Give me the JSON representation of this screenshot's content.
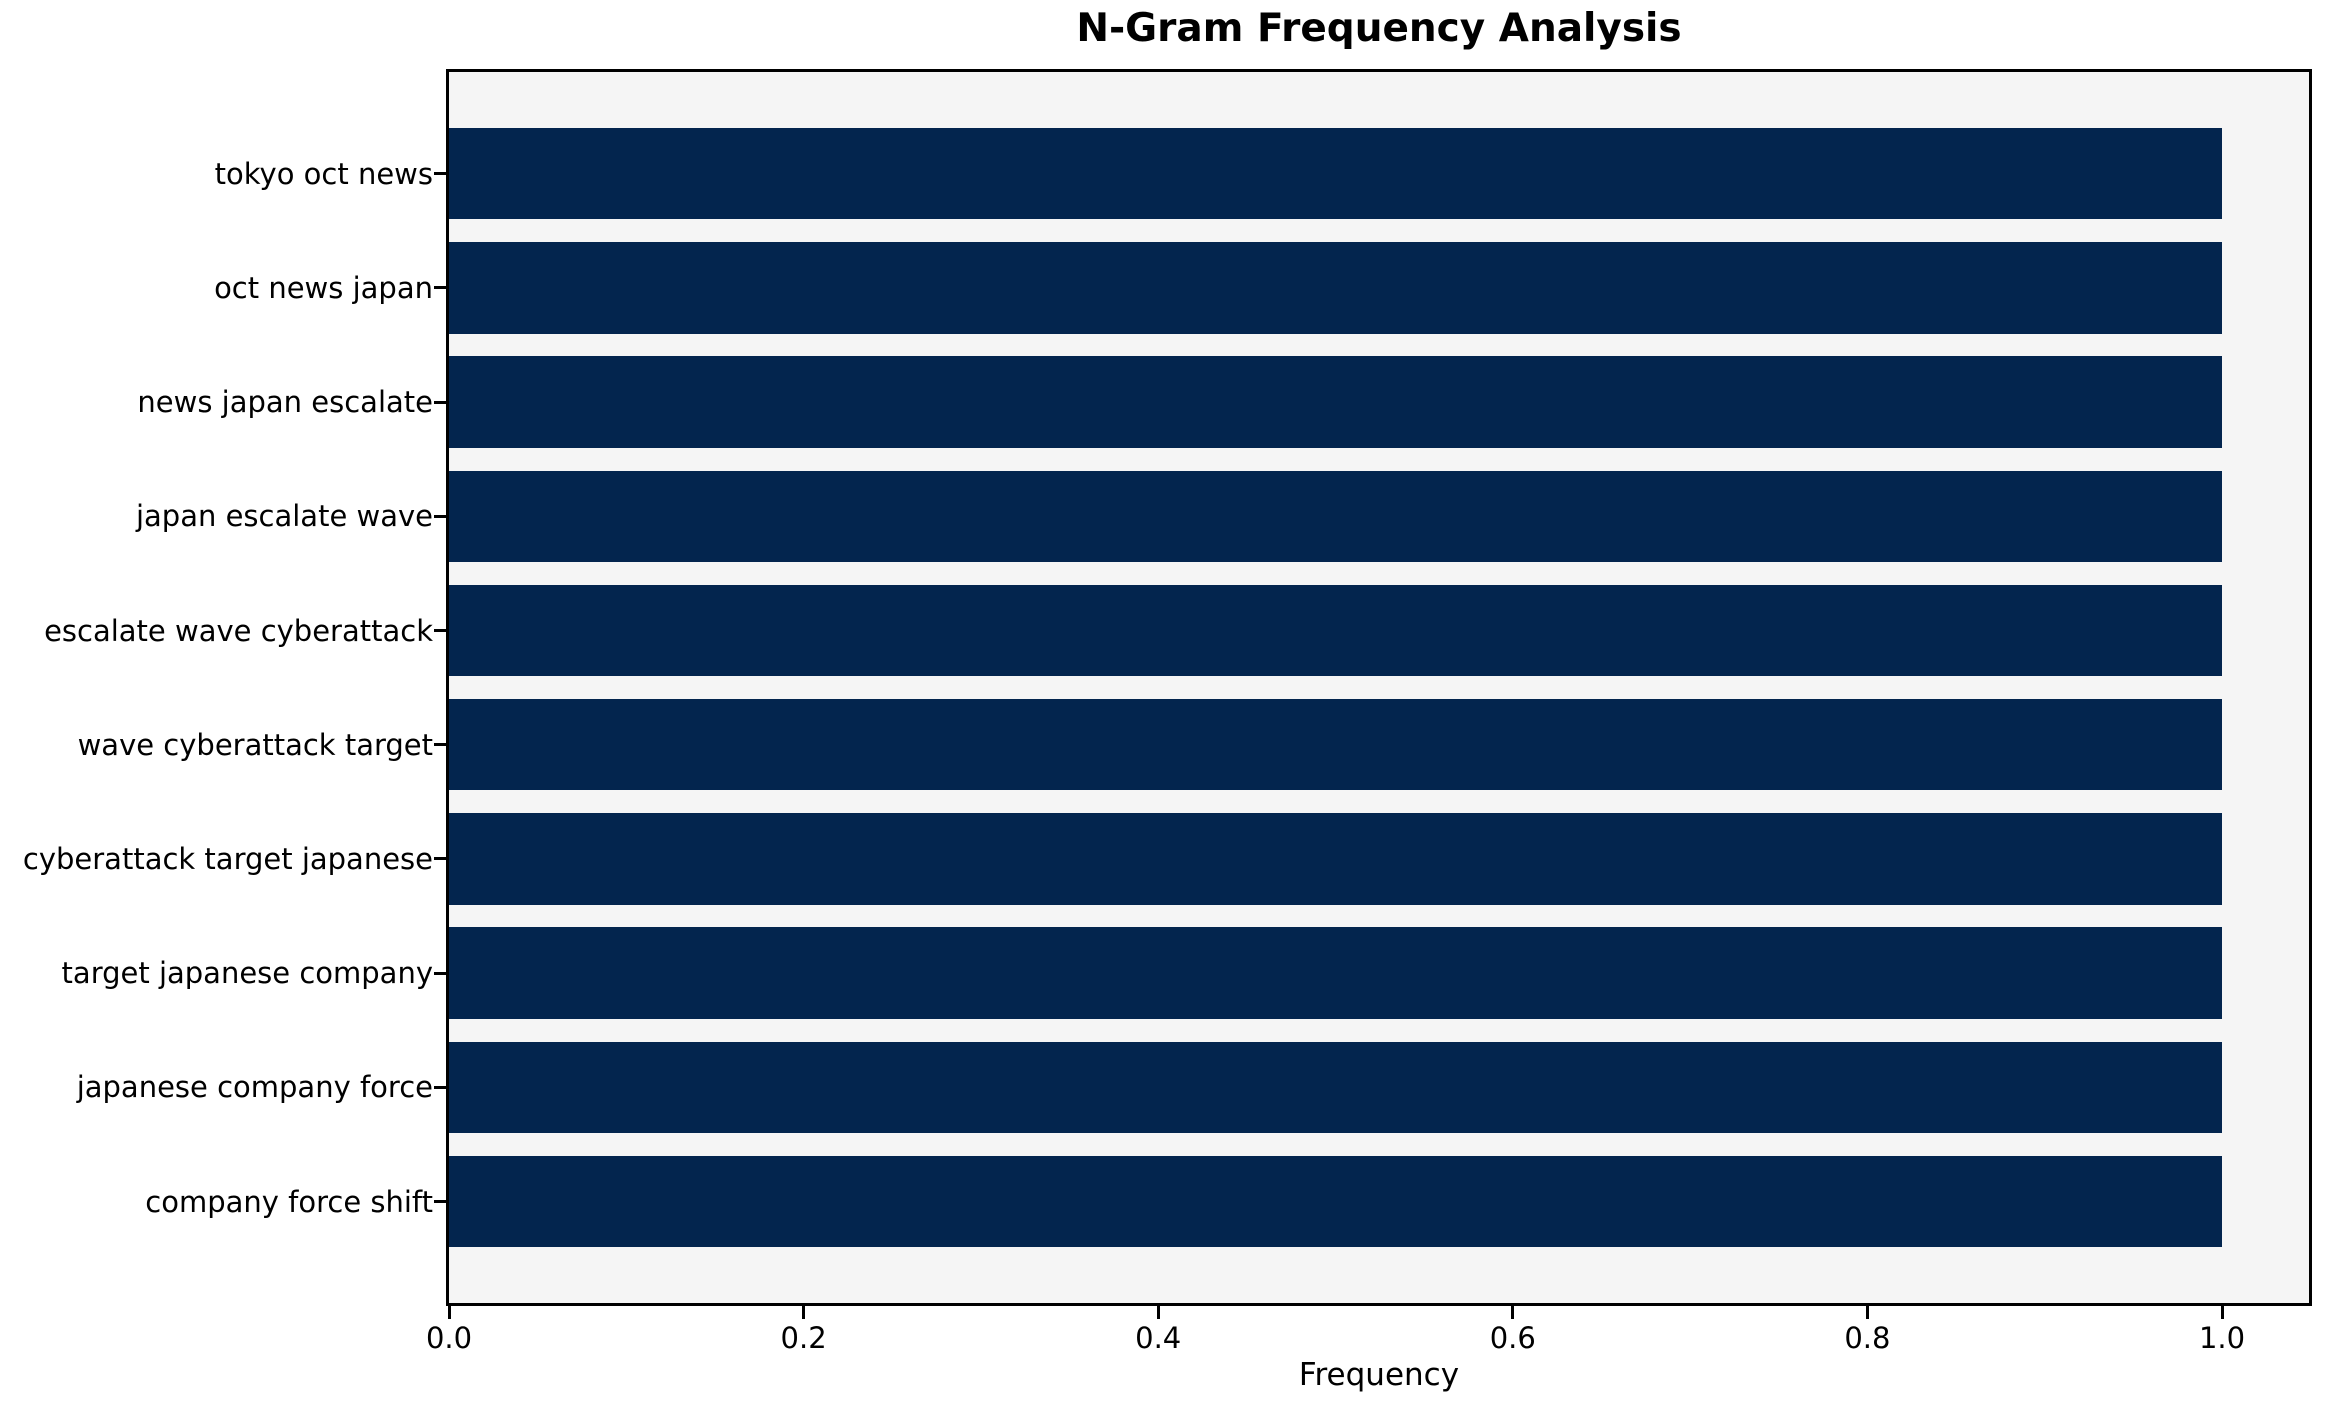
{
  "chart_data": {
    "type": "bar",
    "orientation": "horizontal",
    "title": "N-Gram Frequency Analysis",
    "xlabel": "Frequency",
    "ylabel": "",
    "categories": [
      "tokyo oct news",
      "oct news japan",
      "news japan escalate",
      "japan escalate wave",
      "escalate wave cyberattack",
      "wave cyberattack target",
      "cyberattack target japanese",
      "target japanese company",
      "japanese company force",
      "company force shift"
    ],
    "values": [
      1.0,
      1.0,
      1.0,
      1.0,
      1.0,
      1.0,
      1.0,
      1.0,
      1.0,
      1.0
    ],
    "xlim": [
      0,
      1.05
    ],
    "x_ticks": [
      0.0,
      0.2,
      0.4,
      0.6,
      0.8,
      1.0
    ],
    "x_tick_labels": [
      "0.0",
      "0.2",
      "0.4",
      "0.6",
      "0.8",
      "1.0"
    ],
    "grid": false,
    "legend": null,
    "colors": {
      "bar": "#03254e",
      "plot_background": "#f5f5f5",
      "figure_background": "#ffffff",
      "axis": "#000000",
      "text": "#000000"
    }
  }
}
